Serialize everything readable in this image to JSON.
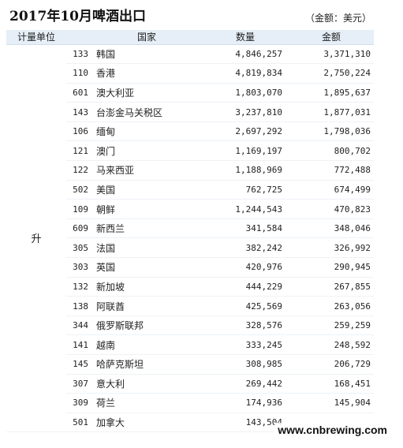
{
  "title": "2017年10月啤酒出口",
  "currency_note": "（金额：美元）",
  "headers": {
    "unit": "计量单位",
    "country": "国家",
    "quantity": "数量",
    "amount": "金额"
  },
  "unit_value": "升",
  "rows": [
    {
      "code": "133",
      "country": "韩国",
      "quantity": "4,846,257",
      "amount": "3,371,310"
    },
    {
      "code": "110",
      "country": "香港",
      "quantity": "4,819,834",
      "amount": "2,750,224"
    },
    {
      "code": "601",
      "country": "澳大利亚",
      "quantity": "1,803,070",
      "amount": "1,895,637"
    },
    {
      "code": "143",
      "country": "台澎金马关税区",
      "quantity": "3,237,810",
      "amount": "1,877,031"
    },
    {
      "code": "106",
      "country": "缅甸",
      "quantity": "2,697,292",
      "amount": "1,798,036"
    },
    {
      "code": "121",
      "country": "澳门",
      "quantity": "1,169,197",
      "amount": "800,702"
    },
    {
      "code": "122",
      "country": "马来西亚",
      "quantity": "1,188,969",
      "amount": "772,488"
    },
    {
      "code": "502",
      "country": "美国",
      "quantity": "762,725",
      "amount": "674,499"
    },
    {
      "code": "109",
      "country": "朝鲜",
      "quantity": "1,244,543",
      "amount": "470,823"
    },
    {
      "code": "609",
      "country": "新西兰",
      "quantity": "341,584",
      "amount": "348,046"
    },
    {
      "code": "305",
      "country": "法国",
      "quantity": "382,242",
      "amount": "326,992"
    },
    {
      "code": "303",
      "country": "英国",
      "quantity": "420,976",
      "amount": "290,945"
    },
    {
      "code": "132",
      "country": "新加坡",
      "quantity": "444,229",
      "amount": "267,855"
    },
    {
      "code": "138",
      "country": "阿联酋",
      "quantity": "425,569",
      "amount": "263,056"
    },
    {
      "code": "344",
      "country": "俄罗斯联邦",
      "quantity": "328,576",
      "amount": "259,259"
    },
    {
      "code": "141",
      "country": "越南",
      "quantity": "333,245",
      "amount": "248,592"
    },
    {
      "code": "145",
      "country": "哈萨克斯坦",
      "quantity": "308,985",
      "amount": "206,729"
    },
    {
      "code": "307",
      "country": "意大利",
      "quantity": "269,442",
      "amount": "168,451"
    },
    {
      "code": "309",
      "country": "荷兰",
      "quantity": "174,936",
      "amount": "145,904"
    },
    {
      "code": "501",
      "country": "加拿大",
      "quantity": "143,504",
      "amount": ""
    }
  ],
  "watermark": "www.cnbrewing.com"
}
